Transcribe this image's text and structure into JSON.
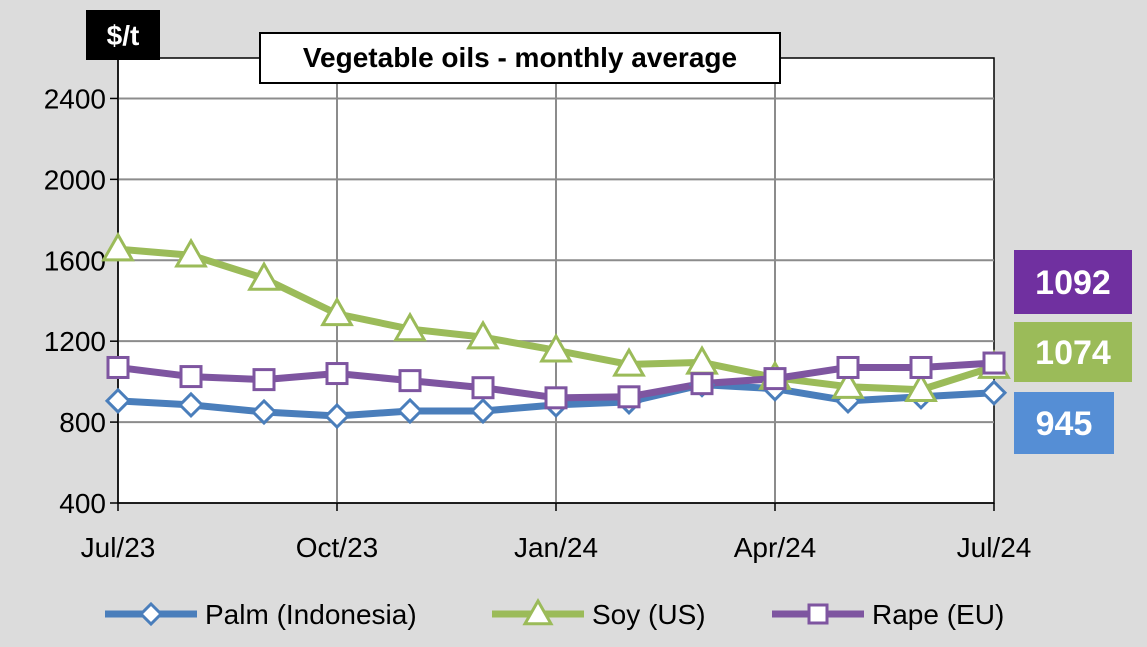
{
  "chart_data": {
    "type": "line",
    "title": "Vegetable oils - monthly average",
    "unit": "$/t",
    "x": [
      "Jul/23",
      "Aug/23",
      "Sep/23",
      "Oct/23",
      "Nov/23",
      "Dec/23",
      "Jan/24",
      "Feb/24",
      "Mar/24",
      "Apr/24",
      "May/24",
      "Jun/24",
      "Jul/24"
    ],
    "x_tick_labels": [
      "Jul/23",
      "Oct/23",
      "Jan/24",
      "Apr/24",
      "Jul/24"
    ],
    "y_ticks": [
      400,
      800,
      1200,
      1600,
      2000,
      2400
    ],
    "ylim": [
      400,
      2600
    ],
    "grid": true,
    "legend_position": "bottom",
    "series": [
      {
        "name": "Palm (Indonesia)",
        "color": "#4a7ebb",
        "marker": "diamond",
        "values": [
          905,
          885,
          850,
          830,
          855,
          855,
          885,
          900,
          985,
          965,
          905,
          925,
          945
        ]
      },
      {
        "name": "Soy (US)",
        "color": "#9bbb59",
        "marker": "triangle",
        "values": [
          1655,
          1625,
          1510,
          1335,
          1260,
          1220,
          1155,
          1085,
          1095,
          1020,
          975,
          960,
          1074
        ]
      },
      {
        "name": "Rape (EU)",
        "color": "#7e55a0",
        "marker": "square",
        "values": [
          1070,
          1025,
          1010,
          1040,
          1005,
          970,
          920,
          925,
          990,
          1015,
          1070,
          1070,
          1092
        ]
      }
    ],
    "end_labels": [
      {
        "series": "Rape (EU)",
        "text": "1092",
        "color": "#7030a0"
      },
      {
        "series": "Soy (US)",
        "text": "1074",
        "color": "#9bbb59"
      },
      {
        "series": "Palm (Indonesia)",
        "text": "945",
        "color": "#558ed5"
      }
    ]
  }
}
